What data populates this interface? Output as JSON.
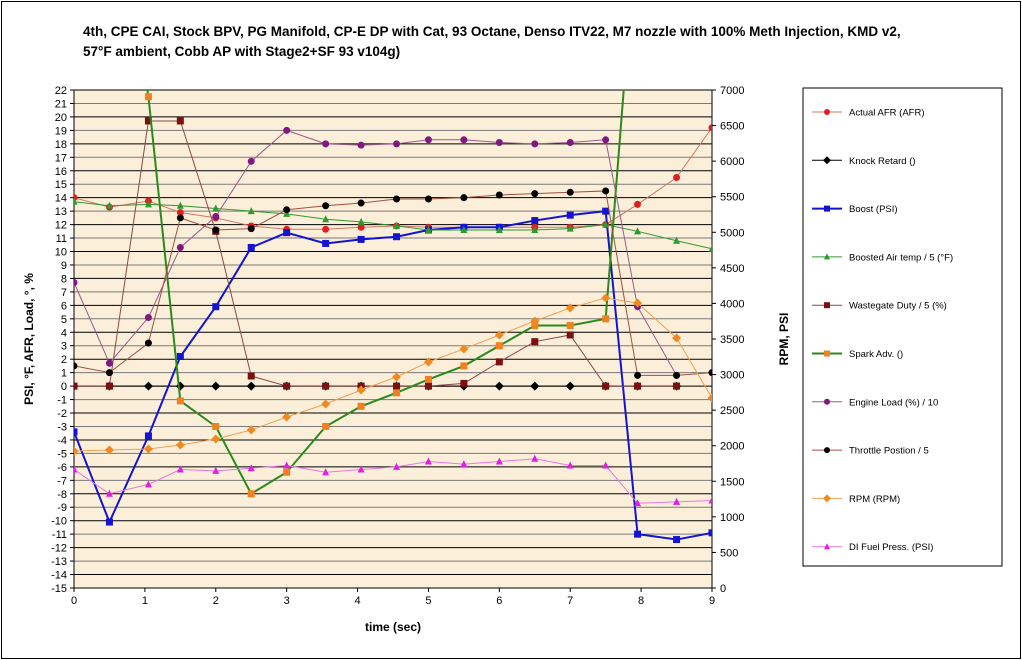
{
  "chart_data": {
    "type": "line",
    "title": "4th, CPE CAI, Stock BPV, PG Manifold, CP-E DP with Cat, 93 Octane, Denso ITV22, M7 nozzle with 100% Meth Injection, KMD v2, 57°F ambient, Cobb AP with Stage2+SF 93 v104g)",
    "xlabel": "time (sec)",
    "ylabel": "PSI, °F, AFR, Load, °, %",
    "y2label": "RPM, PSI",
    "xlim": [
      0,
      9
    ],
    "ylim": [
      -15,
      22
    ],
    "y2lim": [
      0,
      7000
    ],
    "xticks": [
      0,
      1,
      2,
      3,
      4,
      5,
      6,
      7,
      8,
      9
    ],
    "yticks_step": 1,
    "y2ticks_step": 500,
    "grid": true,
    "legend_position": "right",
    "x": [
      0,
      0.5,
      1.05,
      1.5,
      2,
      2.5,
      3,
      3.55,
      4.05,
      4.55,
      5,
      5.5,
      6,
      6.5,
      7,
      7.5,
      7.95,
      8.5,
      9
    ],
    "series": [
      {
        "name": "Actual AFR  (AFR)",
        "axis": "left",
        "line": "#d07868",
        "marker": "circle",
        "marker_color": "#e02020",
        "width": 1,
        "values": [
          14.0,
          13.3,
          13.75,
          12.9,
          12.5,
          11.9,
          11.65,
          11.65,
          11.8,
          11.9,
          11.8,
          11.8,
          11.8,
          11.8,
          11.8,
          12.0,
          13.5,
          15.5,
          19.2
        ]
      },
      {
        "name": "Knock Retard  ()",
        "axis": "left",
        "line": "#000000",
        "marker": "diamond",
        "marker_color": "#000000",
        "width": 1,
        "values": [
          0,
          0,
          0,
          0,
          0,
          0,
          0,
          0,
          0,
          0,
          0,
          0,
          0,
          0,
          0,
          0,
          0,
          0,
          null
        ]
      },
      {
        "name": "Boost (PSI)",
        "axis": "left",
        "line": "#1414d0",
        "marker": "square",
        "marker_color": "#1414d0",
        "width": 2,
        "values": [
          -3.4,
          -10.1,
          -3.7,
          2.2,
          5.9,
          10.3,
          11.4,
          10.6,
          10.9,
          11.1,
          11.6,
          11.8,
          11.8,
          12.3,
          12.7,
          13.0,
          -11.0,
          -11.4,
          -10.9
        ]
      },
      {
        "name": "Boosted Air temp / 5  (°F)",
        "axis": "left",
        "line": "#2e9a2e",
        "marker": "triangle",
        "marker_color": "#2e9a2e",
        "width": 1,
        "values": [
          13.7,
          13.4,
          13.5,
          13.4,
          13.2,
          13.0,
          12.8,
          12.4,
          12.2,
          11.9,
          11.6,
          11.6,
          11.6,
          11.6,
          11.7,
          12.0,
          11.5,
          10.8,
          10.2
        ]
      },
      {
        "name": "Wastegate Duty / 5  (%)",
        "axis": "left",
        "line": "#8a4848",
        "marker": "square",
        "marker_color": "#7a1010",
        "width": 1,
        "values": [
          0,
          0,
          19.7,
          19.7,
          11.5,
          0.75,
          0,
          0,
          0,
          0,
          0,
          0.2,
          1.8,
          3.3,
          3.8,
          0,
          0,
          0,
          null
        ]
      },
      {
        "name": "Spark Adv.  ()",
        "axis": "left",
        "line": "#2a8a1a",
        "marker": "square",
        "marker_color": "#f08020",
        "width": 2,
        "values": [
          null,
          40,
          21.5,
          -1.1,
          -3.0,
          -8.0,
          -6.4,
          -3.0,
          -1.5,
          -0.5,
          0.5,
          1.5,
          3.0,
          4.5,
          4.5,
          5.0,
          35,
          null,
          null
        ]
      },
      {
        "name": "Engine Load (%) / 10",
        "axis": "left",
        "line": "#9a5a8a",
        "marker": "circle",
        "marker_color": "#801880",
        "width": 1,
        "values": [
          7.7,
          1.7,
          5.1,
          10.3,
          12.6,
          16.7,
          19.0,
          18.0,
          17.9,
          18.0,
          18.3,
          18.3,
          18.1,
          18.0,
          18.1,
          18.3,
          5.9,
          0.8,
          null
        ]
      },
      {
        "name": "Throttle Postion / 5",
        "axis": "left",
        "line": "#a05040",
        "marker": "circle",
        "marker_color": "#000000",
        "width": 1,
        "values": [
          1.5,
          1.0,
          3.2,
          12.5,
          11.6,
          11.7,
          13.1,
          13.4,
          13.6,
          13.9,
          13.9,
          14.0,
          14.2,
          14.3,
          14.4,
          14.5,
          0.8,
          0.8,
          1.0
        ]
      },
      {
        "name": "RPM  (RPM)",
        "axis": "right",
        "line": "#f0a050",
        "marker": "diamond",
        "marker_color": "#f08a20",
        "width": 1,
        "values": [
          1926,
          1940,
          1954,
          2010,
          2094,
          2221,
          2404,
          2586,
          2783,
          2966,
          3177,
          3360,
          3556,
          3753,
          3936,
          4077,
          4006,
          3514,
          2671
        ]
      },
      {
        "name": "DI Fuel Press.  (PSI)",
        "axis": "left",
        "line": "#e878e0",
        "marker": "triangle",
        "marker_color": "#e020e0",
        "width": 1,
        "values": [
          -6.2,
          -8.0,
          -7.3,
          -6.2,
          -6.3,
          -6.1,
          -5.9,
          -6.4,
          -6.2,
          -6.0,
          -5.6,
          -5.8,
          -5.6,
          -5.4,
          -5.9,
          -5.9,
          -8.7,
          -8.6,
          -8.5
        ]
      }
    ]
  }
}
